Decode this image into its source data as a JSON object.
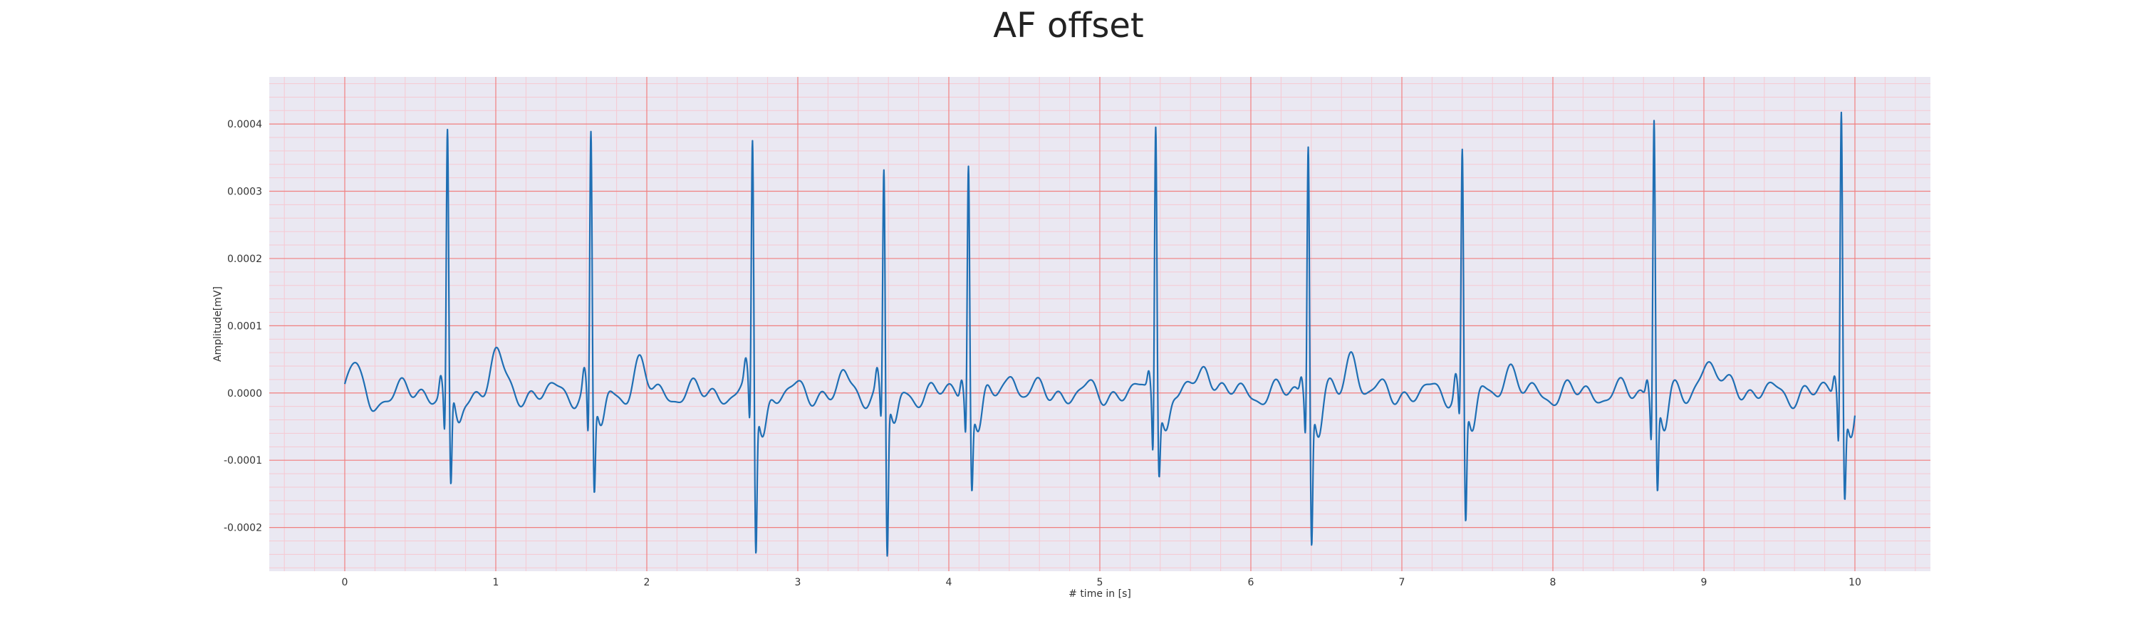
{
  "chart_data": {
    "type": "line",
    "title": "AF offset",
    "xlabel": "# time in [s]",
    "ylabel": "Amplitude[mV]",
    "xlim": [
      -0.5,
      10.5
    ],
    "ylim": [
      -0.000265,
      0.00047
    ],
    "xticks": [
      0,
      1,
      2,
      3,
      4,
      5,
      6,
      7,
      8,
      9,
      10
    ],
    "xtick_labels": [
      "0",
      "1",
      "2",
      "3",
      "4",
      "5",
      "6",
      "7",
      "8",
      "9",
      "10"
    ],
    "yticks": [
      -0.0002,
      -0.0001,
      0.0,
      0.0001,
      0.0002,
      0.0003,
      0.0004
    ],
    "ytick_labels": [
      "-0.0002",
      "-0.0001",
      "0.0000",
      "0.0001",
      "0.0002",
      "0.0003",
      "0.0004"
    ],
    "grid": true,
    "minor_grid": true,
    "colors": {
      "line": "#1f6fb4",
      "background": "#eae8f2",
      "major_grid": "#f08080",
      "minor_grid": "#f6c9d2"
    },
    "beats": [
      {
        "t": 0.68,
        "r": 0.00039,
        "s": -0.000145,
        "q": -7e-05
      },
      {
        "t": 1.63,
        "r": 0.000392,
        "s": -0.00014,
        "q": -8e-05
      },
      {
        "t": 2.7,
        "r": 0.000375,
        "s": -0.000225,
        "q": -7e-05
      },
      {
        "t": 3.57,
        "r": 0.00034,
        "s": -0.000235,
        "q": -5e-05
      },
      {
        "t": 4.13,
        "r": 0.000355,
        "s": -0.000125,
        "q": -6e-05
      },
      {
        "t": 5.37,
        "r": 0.00042,
        "s": -0.0001,
        "q": -9e-05
      },
      {
        "t": 6.38,
        "r": 0.000385,
        "s": -0.00021,
        "q": -6e-05
      },
      {
        "t": 7.4,
        "r": 0.000365,
        "s": -0.00018,
        "q": -5e-05
      },
      {
        "t": 8.67,
        "r": 0.000422,
        "s": -0.000135,
        "q": -7e-05
      },
      {
        "t": 9.91,
        "r": 0.000435,
        "s": -0.000135,
        "q": -8e-05
      }
    ],
    "bumps": [
      {
        "t": 0.08,
        "a": 4.5e-05,
        "w": 0.035
      },
      {
        "t": 0.17,
        "a": -3e-05,
        "w": 0.03
      },
      {
        "t": 1.0,
        "a": 6e-05,
        "w": 0.04
      },
      {
        "t": 1.95,
        "a": 4e-05,
        "w": 0.04
      },
      {
        "t": 3.3,
        "a": 2e-05,
        "w": 0.03
      },
      {
        "t": 4.42,
        "a": 3.5e-05,
        "w": 0.03
      },
      {
        "t": 5.7,
        "a": 5e-05,
        "w": 0.04
      },
      {
        "t": 6.67,
        "a": 6e-05,
        "w": 0.04
      },
      {
        "t": 7.7,
        "a": 4e-05,
        "w": 0.04
      },
      {
        "t": 9.02,
        "a": 5.5e-05,
        "w": 0.04
      },
      {
        "t": 9.2,
        "a": 2e-05,
        "w": 0.04
      }
    ]
  }
}
